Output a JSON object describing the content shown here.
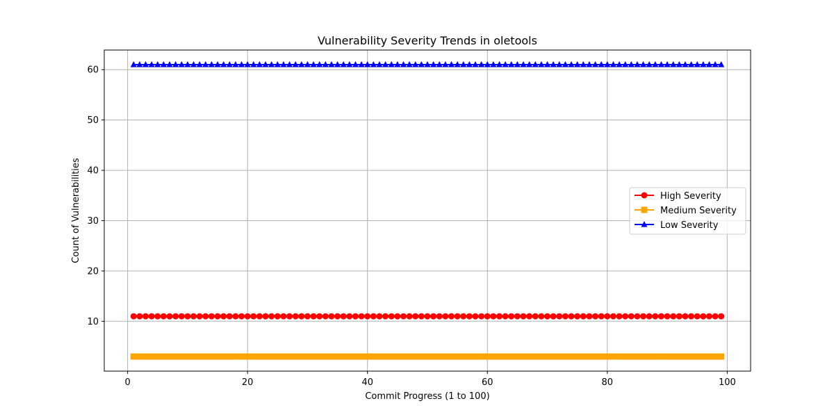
{
  "chart_data": {
    "type": "line",
    "title": "Vulnerability Severity Trends in oletools",
    "xlabel": "Commit Progress (1 to 100)",
    "ylabel": "Count of Vulnerabilities",
    "xlim": [
      -3.9,
      103.9
    ],
    "ylim": [
      0.1,
      63.9
    ],
    "xticks": [
      0,
      20,
      40,
      60,
      80,
      100
    ],
    "yticks": [
      10,
      20,
      30,
      40,
      50,
      60
    ],
    "grid": true,
    "legend_position": "center-right",
    "x": {
      "start": 1,
      "end": 99,
      "step": 1
    },
    "series": [
      {
        "name": "High Severity",
        "value": 11,
        "color": "#ff0000",
        "marker": "circle"
      },
      {
        "name": "Medium Severity",
        "value": 3,
        "color": "#ffa500",
        "marker": "square"
      },
      {
        "name": "Low Severity",
        "value": 61,
        "color": "#0000ff",
        "marker": "triangle"
      }
    ]
  }
}
